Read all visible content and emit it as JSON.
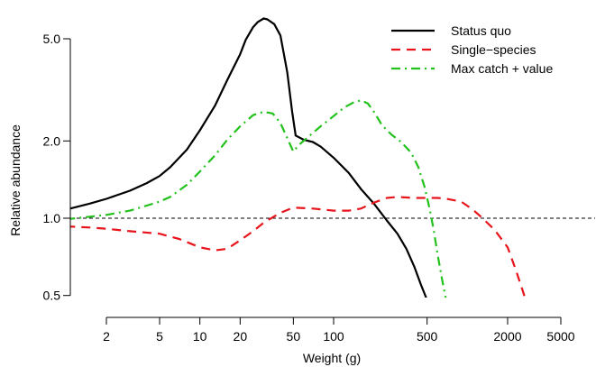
{
  "chart_data": {
    "type": "line",
    "xlabel": "Weight (g)",
    "ylabel": "Relative abundance",
    "x_scale": "log",
    "y_scale": "log",
    "xlim": [
      1,
      5000
    ],
    "ylim": [
      0.5,
      6.2
    ],
    "x_ticks": [
      2,
      5,
      10,
      20,
      50,
      100,
      500,
      2000,
      5000
    ],
    "x_tick_labels": [
      "2",
      "5",
      "10",
      "20",
      "50",
      "100",
      "500",
      "2000",
      "5000"
    ],
    "y_ticks": [
      0.5,
      1.0,
      2.0,
      5.0
    ],
    "y_tick_labels": [
      "0.5",
      "1.0",
      "2.0",
      "5.0"
    ],
    "reference_line": {
      "y": 1.0,
      "style": "dashed",
      "color": "#000000"
    },
    "legend_position": "top-right",
    "series": [
      {
        "name": "Status quo",
        "color": "#000000",
        "dash": "solid",
        "points": [
          [
            1,
            1.08
          ],
          [
            1.5,
            1.14
          ],
          [
            2,
            1.19
          ],
          [
            3,
            1.28
          ],
          [
            4,
            1.37
          ],
          [
            5,
            1.46
          ],
          [
            6,
            1.58
          ],
          [
            8,
            1.85
          ],
          [
            10,
            2.2
          ],
          [
            13,
            2.75
          ],
          [
            16,
            3.45
          ],
          [
            20,
            4.35
          ],
          [
            22,
            4.95
          ],
          [
            25,
            5.55
          ],
          [
            27,
            5.8
          ],
          [
            30,
            6.0
          ],
          [
            32,
            5.95
          ],
          [
            36,
            5.7
          ],
          [
            40,
            5.15
          ],
          [
            45,
            3.7
          ],
          [
            49,
            2.6
          ],
          [
            52,
            2.1
          ],
          [
            60,
            2.02
          ],
          [
            70,
            1.98
          ],
          [
            80,
            1.9
          ],
          [
            100,
            1.72
          ],
          [
            130,
            1.5
          ],
          [
            160,
            1.3
          ],
          [
            200,
            1.14
          ],
          [
            250,
            0.98
          ],
          [
            300,
            0.87
          ],
          [
            350,
            0.76
          ],
          [
            400,
            0.65
          ],
          [
            450,
            0.55
          ],
          [
            500,
            0.48
          ]
        ]
      },
      {
        "name": "Single−species",
        "color": "#e8141b",
        "dash": "dashed",
        "points": [
          [
            1,
            0.93
          ],
          [
            1.5,
            0.92
          ],
          [
            2,
            0.91
          ],
          [
            3,
            0.89
          ],
          [
            5,
            0.87
          ],
          [
            7,
            0.83
          ],
          [
            10,
            0.77
          ],
          [
            13,
            0.75
          ],
          [
            16,
            0.76
          ],
          [
            20,
            0.82
          ],
          [
            25,
            0.89
          ],
          [
            30,
            0.96
          ],
          [
            40,
            1.05
          ],
          [
            50,
            1.1
          ],
          [
            70,
            1.09
          ],
          [
            100,
            1.07
          ],
          [
            130,
            1.07
          ],
          [
            160,
            1.09
          ],
          [
            200,
            1.15
          ],
          [
            250,
            1.2
          ],
          [
            300,
            1.21
          ],
          [
            400,
            1.2
          ],
          [
            500,
            1.2
          ],
          [
            600,
            1.2
          ],
          [
            700,
            1.19
          ],
          [
            900,
            1.16
          ],
          [
            1100,
            1.08
          ],
          [
            1300,
            1.0
          ],
          [
            1600,
            0.9
          ],
          [
            2000,
            0.77
          ],
          [
            2300,
            0.63
          ],
          [
            2600,
            0.52
          ],
          [
            2800,
            0.46
          ]
        ]
      },
      {
        "name": "Max catch + value",
        "color": "#22c11c",
        "dash": "dashdot",
        "points": [
          [
            1,
            0.99
          ],
          [
            2,
            1.03
          ],
          [
            3,
            1.07
          ],
          [
            4,
            1.12
          ],
          [
            5,
            1.16
          ],
          [
            6,
            1.21
          ],
          [
            8,
            1.35
          ],
          [
            10,
            1.52
          ],
          [
            13,
            1.76
          ],
          [
            16,
            2.02
          ],
          [
            20,
            2.28
          ],
          [
            25,
            2.52
          ],
          [
            30,
            2.6
          ],
          [
            35,
            2.56
          ],
          [
            40,
            2.35
          ],
          [
            45,
            2.05
          ],
          [
            50,
            1.82
          ],
          [
            55,
            1.93
          ],
          [
            65,
            2.08
          ],
          [
            80,
            2.28
          ],
          [
            100,
            2.5
          ],
          [
            120,
            2.7
          ],
          [
            140,
            2.82
          ],
          [
            160,
            2.88
          ],
          [
            180,
            2.8
          ],
          [
            200,
            2.6
          ],
          [
            230,
            2.3
          ],
          [
            270,
            2.12
          ],
          [
            320,
            1.98
          ],
          [
            380,
            1.8
          ],
          [
            430,
            1.58
          ],
          [
            480,
            1.32
          ],
          [
            520,
            1.1
          ],
          [
            560,
            0.9
          ],
          [
            600,
            0.72
          ],
          [
            650,
            0.57
          ],
          [
            700,
            0.47
          ]
        ]
      }
    ]
  }
}
